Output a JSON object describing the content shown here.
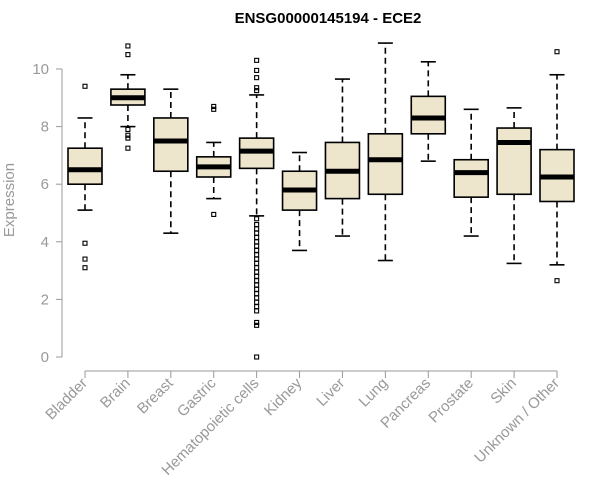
{
  "chart_data": {
    "type": "box",
    "title": "ENSG00000145194 - ECE2",
    "xlabel": "",
    "ylabel": "Expression",
    "ylim": [
      0,
      11
    ],
    "yticks": [
      0,
      2,
      4,
      6,
      8,
      10
    ],
    "grid": false,
    "box_color": "#ede5cc",
    "axis_color": "#999999",
    "categories": [
      "Bladder",
      "Brain",
      "Breast",
      "Gastric",
      "Hematopoietic cells",
      "Kidney",
      "Liver",
      "Lung",
      "Pancreas",
      "Prostate",
      "Skin",
      "Unknown / Other"
    ],
    "boxes": [
      {
        "name": "Bladder",
        "whisker_low": 5.1,
        "q1": 6.0,
        "median": 6.5,
        "q3": 7.25,
        "whisker_high": 8.3,
        "outliers": [
          9.4,
          3.95,
          3.4,
          3.1
        ]
      },
      {
        "name": "Brain",
        "whisker_low": 8.0,
        "q1": 8.75,
        "median": 9.0,
        "q3": 9.3,
        "whisker_high": 9.8,
        "outliers": [
          10.8,
          10.5,
          7.9,
          7.7,
          7.6,
          7.25
        ]
      },
      {
        "name": "Breast",
        "whisker_low": 4.3,
        "q1": 6.45,
        "median": 7.5,
        "q3": 8.3,
        "whisker_high": 9.3,
        "outliers": []
      },
      {
        "name": "Gastric",
        "whisker_low": 5.5,
        "q1": 6.25,
        "median": 6.6,
        "q3": 6.95,
        "whisker_high": 7.45,
        "outliers": [
          8.7,
          8.6,
          4.95
        ]
      },
      {
        "name": "Hematopoietic cells",
        "whisker_low": 4.9,
        "q1": 6.55,
        "median": 7.15,
        "q3": 7.6,
        "whisker_high": 9.1,
        "outliers": [
          10.3,
          9.95,
          9.7,
          9.35,
          9.25,
          4.8,
          4.6,
          4.45,
          4.3,
          4.15,
          4.0,
          3.85,
          3.7,
          3.55,
          3.4,
          3.25,
          3.1,
          2.95,
          2.8,
          2.65,
          2.5,
          2.35,
          2.2,
          2.05,
          1.9,
          1.75,
          1.6,
          1.2,
          1.1,
          0.0
        ]
      },
      {
        "name": "Kidney",
        "whisker_low": 3.7,
        "q1": 5.1,
        "median": 5.8,
        "q3": 6.45,
        "whisker_high": 7.1,
        "outliers": []
      },
      {
        "name": "Liver",
        "whisker_low": 4.2,
        "q1": 5.5,
        "median": 6.45,
        "q3": 7.45,
        "whisker_high": 9.65,
        "outliers": []
      },
      {
        "name": "Lung",
        "whisker_low": 3.35,
        "q1": 5.65,
        "median": 6.85,
        "q3": 7.75,
        "whisker_high": 10.9,
        "outliers": []
      },
      {
        "name": "Pancreas",
        "whisker_low": 6.8,
        "q1": 7.75,
        "median": 8.3,
        "q3": 9.05,
        "whisker_high": 10.25,
        "outliers": []
      },
      {
        "name": "Prostate",
        "whisker_low": 4.2,
        "q1": 5.55,
        "median": 6.4,
        "q3": 6.85,
        "whisker_high": 8.6,
        "outliers": []
      },
      {
        "name": "Skin",
        "whisker_low": 3.25,
        "q1": 5.65,
        "median": 7.45,
        "q3": 7.95,
        "whisker_high": 8.65,
        "outliers": []
      },
      {
        "name": "Unknown / Other",
        "whisker_low": 3.2,
        "q1": 5.4,
        "median": 6.25,
        "q3": 7.2,
        "whisker_high": 9.8,
        "outliers": [
          10.6,
          2.65
        ]
      }
    ]
  }
}
